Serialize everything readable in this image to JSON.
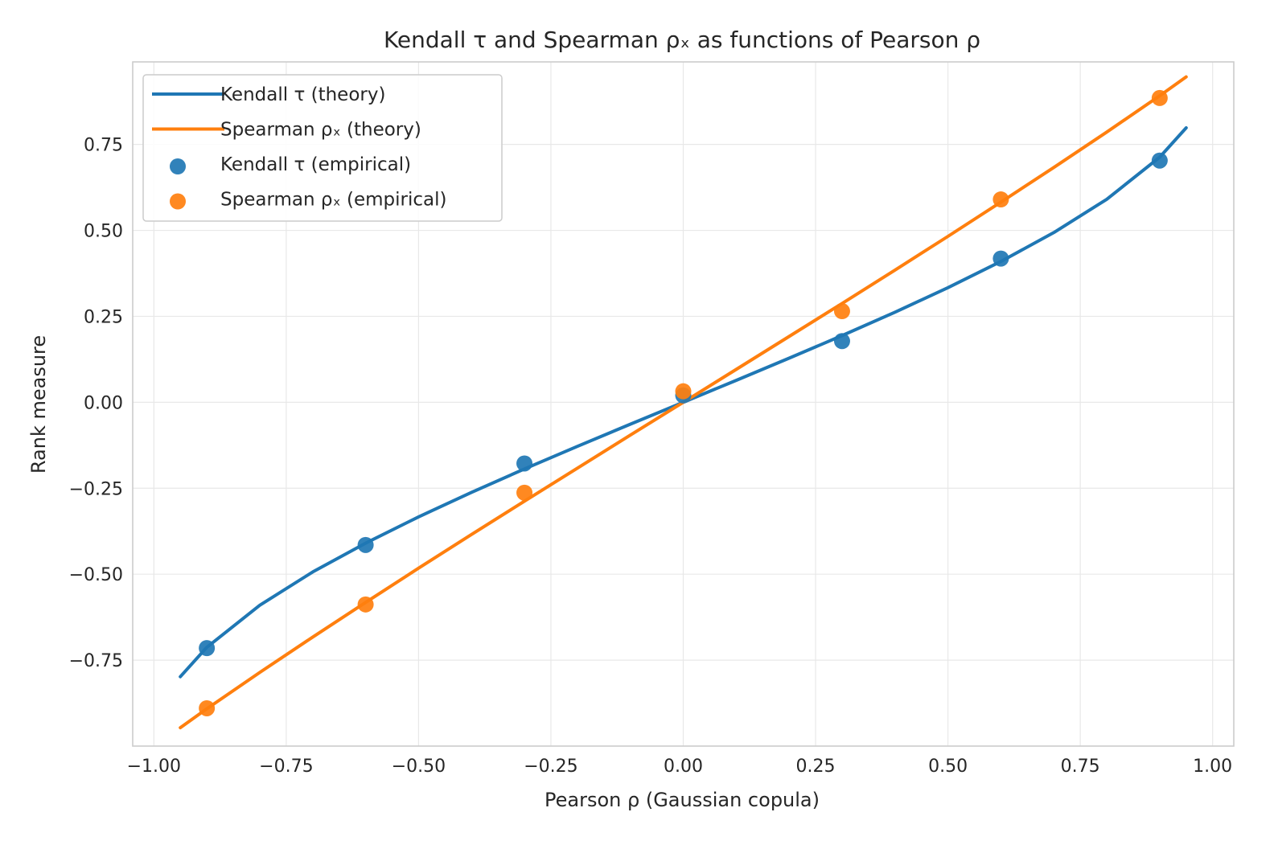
{
  "chart_data": {
    "type": "line",
    "title": "Kendall τ and Spearman ρₓ as functions of Pearson ρ",
    "xlabel": "Pearson ρ (Gaussian copula)",
    "ylabel": "Rank measure",
    "xlim": [
      -1.04,
      1.04
    ],
    "ylim": [
      -1.0,
      0.99
    ],
    "xticks": [
      -1.0,
      -0.75,
      -0.5,
      -0.25,
      0.0,
      0.25,
      0.5,
      0.75,
      1.0
    ],
    "xtick_labels": [
      "−1.00",
      "−0.75",
      "−0.50",
      "−0.25",
      "0.00",
      "0.25",
      "0.50",
      "0.75",
      "1.00"
    ],
    "yticks": [
      -0.75,
      -0.5,
      -0.25,
      0.0,
      0.25,
      0.5,
      0.75
    ],
    "ytick_labels": [
      "−0.75",
      "−0.50",
      "−0.25",
      "0.00",
      "0.25",
      "0.50",
      "0.75"
    ],
    "grid": true,
    "legend_position": "upper-left",
    "series": [
      {
        "name": "Kendall τ (theory)",
        "kind": "line",
        "color": "#1f77b4",
        "x": [
          -0.95,
          -0.9,
          -0.8,
          -0.7,
          -0.6,
          -0.5,
          -0.4,
          -0.3,
          -0.2,
          -0.1,
          0.0,
          0.1,
          0.2,
          0.3,
          0.4,
          0.5,
          0.6,
          0.7,
          0.8,
          0.9,
          0.95
        ],
        "y": [
          -0.7983,
          -0.7129,
          -0.5903,
          -0.4936,
          -0.4097,
          -0.3333,
          -0.262,
          -0.194,
          -0.1282,
          -0.0638,
          0.0,
          0.0638,
          0.1282,
          0.194,
          0.262,
          0.3333,
          0.4097,
          0.4936,
          0.5903,
          0.7129,
          0.7983
        ]
      },
      {
        "name": "Spearman ρₓ (theory)",
        "kind": "line",
        "color": "#ff7f0e",
        "x": [
          -0.95,
          -0.9,
          -0.8,
          -0.7,
          -0.6,
          -0.5,
          -0.4,
          -0.3,
          -0.2,
          -0.1,
          0.0,
          0.1,
          0.2,
          0.3,
          0.4,
          0.5,
          0.6,
          0.7,
          0.8,
          0.9,
          0.95
        ],
        "y": [
          -0.9464,
          -0.8915,
          -0.7859,
          -0.6829,
          -0.5821,
          -0.4826,
          -0.3846,
          -0.2876,
          -0.1915,
          -0.0956,
          0.0,
          0.0956,
          0.1915,
          0.2876,
          0.3846,
          0.4826,
          0.5821,
          0.6829,
          0.7859,
          0.8915,
          0.9464
        ]
      },
      {
        "name": "Kendall τ (empirical)",
        "kind": "scatter",
        "color": "#1f77b4",
        "x": [
          -0.9,
          -0.6,
          -0.3,
          0.0,
          0.3,
          0.6,
          0.9
        ],
        "y": [
          -0.715,
          -0.415,
          -0.178,
          0.02,
          0.178,
          0.418,
          0.703
        ]
      },
      {
        "name": "Spearman ρₓ (empirical)",
        "kind": "scatter",
        "color": "#ff7f0e",
        "x": [
          -0.9,
          -0.6,
          -0.3,
          0.0,
          0.3,
          0.6,
          0.9
        ],
        "y": [
          -0.89,
          -0.588,
          -0.263,
          0.032,
          0.265,
          0.59,
          0.885
        ]
      }
    ]
  }
}
